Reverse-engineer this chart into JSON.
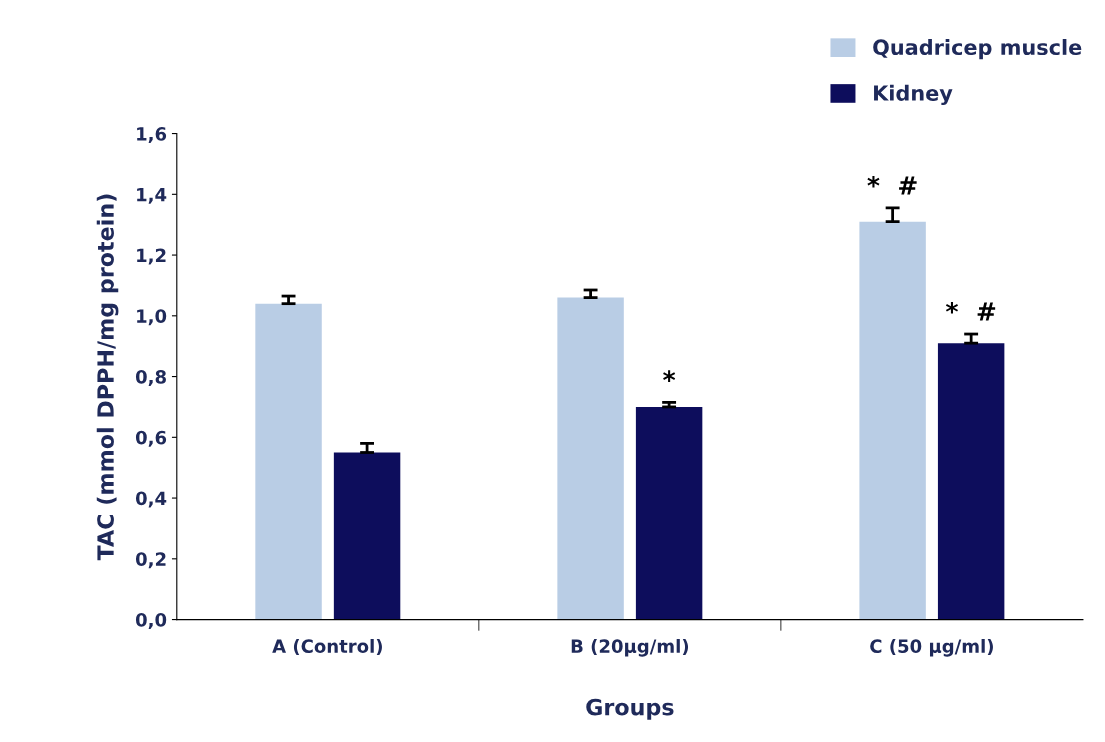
{
  "chart_data": {
    "type": "bar",
    "xlabel": "Groups",
    "ylabel": "TAC (mmol DPPH/mg protein)",
    "categories": [
      "A (Control)",
      "B (20µg/ml)",
      "C (50 µg/ml)"
    ],
    "series": [
      {
        "name": "Quadricep muscle",
        "color": "#b9cde5",
        "values": [
          1.04,
          1.06,
          1.31
        ],
        "errors": [
          0.025,
          0.025,
          0.045
        ]
      },
      {
        "name": "Kidney",
        "color": "#0d0d5c",
        "values": [
          0.55,
          0.7,
          0.91
        ],
        "errors": [
          0.03,
          0.015,
          0.03
        ]
      }
    ],
    "ylim": [
      0,
      1.6
    ],
    "yticks": [
      {
        "value": 0,
        "label": "0,0"
      },
      {
        "value": 0.2,
        "label": "0,2"
      },
      {
        "value": 0.4,
        "label": "0,4"
      },
      {
        "value": 0.6,
        "label": "0,6"
      },
      {
        "value": 0.8,
        "label": "0,8"
      },
      {
        "value": 1.0,
        "label": "1,0"
      },
      {
        "value": 1.2,
        "label": "1,2"
      },
      {
        "value": 1.4,
        "label": "1,4"
      },
      {
        "value": 1.6,
        "label": "1,6"
      }
    ],
    "annotations": [
      "*",
      "*  #",
      "*  #"
    ],
    "grid": false,
    "legend": "top right"
  }
}
